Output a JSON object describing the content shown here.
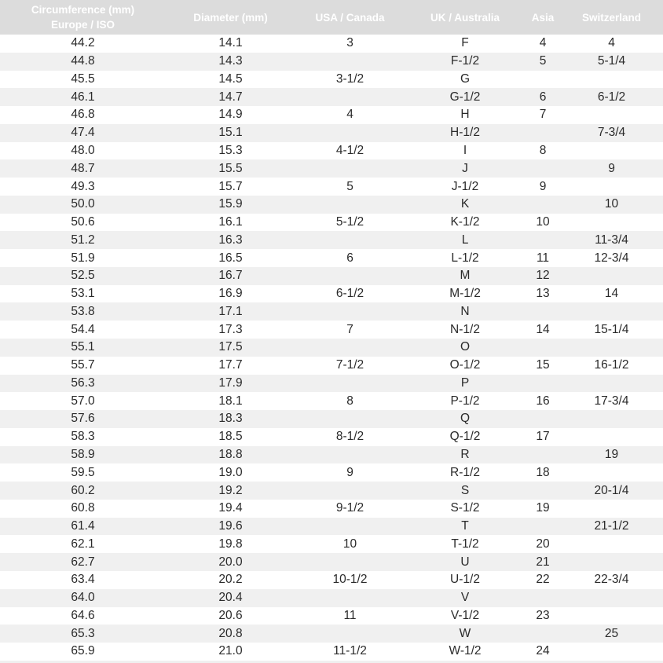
{
  "chart_data": {
    "type": "table",
    "columns": [
      "Circumference (mm) Europe / ISO",
      "Diameter (mm)",
      "USA / Canada",
      "UK / Australia",
      "Asia",
      "Switzerland"
    ],
    "rows": [
      [
        "44.2",
        "14.1",
        "3",
        "F",
        "4",
        "4"
      ],
      [
        "44.8",
        "14.3",
        "",
        "F-1/2",
        "5",
        "5-1/4"
      ],
      [
        "45.5",
        "14.5",
        "3-1/2",
        "G",
        "",
        ""
      ],
      [
        "46.1",
        "14.7",
        "",
        "G-1/2",
        "6",
        "6-1/2"
      ],
      [
        "46.8",
        "14.9",
        "4",
        "H",
        "7",
        ""
      ],
      [
        "47.4",
        "15.1",
        "",
        "H-1/2",
        "",
        "7-3/4"
      ],
      [
        "48.0",
        "15.3",
        "4-1/2",
        "I",
        "8",
        ""
      ],
      [
        "48.7",
        "15.5",
        "",
        "J",
        "",
        "9"
      ],
      [
        "49.3",
        "15.7",
        "5",
        "J-1/2",
        "9",
        ""
      ],
      [
        "50.0",
        "15.9",
        "",
        "K",
        "",
        "10"
      ],
      [
        "50.6",
        "16.1",
        "5-1/2",
        "K-1/2",
        "10",
        ""
      ],
      [
        "51.2",
        "16.3",
        "",
        "L",
        "",
        "11-3/4"
      ],
      [
        "51.9",
        "16.5",
        "6",
        "L-1/2",
        "11",
        "12-3/4"
      ],
      [
        "52.5",
        "16.7",
        "",
        "M",
        "12",
        ""
      ],
      [
        "53.1",
        "16.9",
        "6-1/2",
        "M-1/2",
        "13",
        "14"
      ],
      [
        "53.8",
        "17.1",
        "",
        "N",
        "",
        ""
      ],
      [
        "54.4",
        "17.3",
        "7",
        "N-1/2",
        "14",
        "15-1/4"
      ],
      [
        "55.1",
        "17.5",
        "",
        "O",
        "",
        ""
      ],
      [
        "55.7",
        "17.7",
        "7-1/2",
        "O-1/2",
        "15",
        "16-1/2"
      ],
      [
        "56.3",
        "17.9",
        "",
        "P",
        "",
        ""
      ],
      [
        "57.0",
        "18.1",
        "8",
        "P-1/2",
        "16",
        "17-3/4"
      ],
      [
        "57.6",
        "18.3",
        "",
        "Q",
        "",
        ""
      ],
      [
        "58.3",
        "18.5",
        "8-1/2",
        "Q-1/2",
        "17",
        ""
      ],
      [
        "58.9",
        "18.8",
        "",
        "R",
        "",
        "19"
      ],
      [
        "59.5",
        "19.0",
        "9",
        "R-1/2",
        "18",
        ""
      ],
      [
        "60.2",
        "19.2",
        "",
        "S",
        "",
        "20-1/4"
      ],
      [
        "60.8",
        "19.4",
        "9-1/2",
        "S-1/2",
        "19",
        ""
      ],
      [
        "61.4",
        "19.6",
        "",
        "T",
        "",
        "21-1/2"
      ],
      [
        "62.1",
        "19.8",
        "10",
        "T-1/2",
        "20",
        ""
      ],
      [
        "62.7",
        "20.0",
        "",
        "U",
        "21",
        ""
      ],
      [
        "63.4",
        "20.2",
        "10-1/2",
        "U-1/2",
        "22",
        "22-3/4"
      ],
      [
        "64.0",
        "20.4",
        "",
        "V",
        "",
        ""
      ],
      [
        "64.6",
        "20.6",
        "11",
        "V-1/2",
        "23",
        ""
      ],
      [
        "65.3",
        "20.8",
        "",
        "W",
        "",
        "25"
      ],
      [
        "65.9",
        "21.0",
        "11-1/2",
        "W-1/2",
        "24",
        ""
      ]
    ]
  },
  "header": {
    "circumference_line1": "Circumference (mm)",
    "circumference_line2": "Europe / ISO",
    "diameter": "Diameter (mm)",
    "usa_canada": "USA / Canada",
    "uk_australia": "UK / Australia",
    "asia": "Asia",
    "switzerland": "Switzerland"
  },
  "colors": {
    "header_bg": "#dcdcdc",
    "header_text": "#ffffff",
    "row_bg": "#ffffff",
    "row_alt_bg": "#f0f0f0",
    "text": "#2a2a2a"
  }
}
